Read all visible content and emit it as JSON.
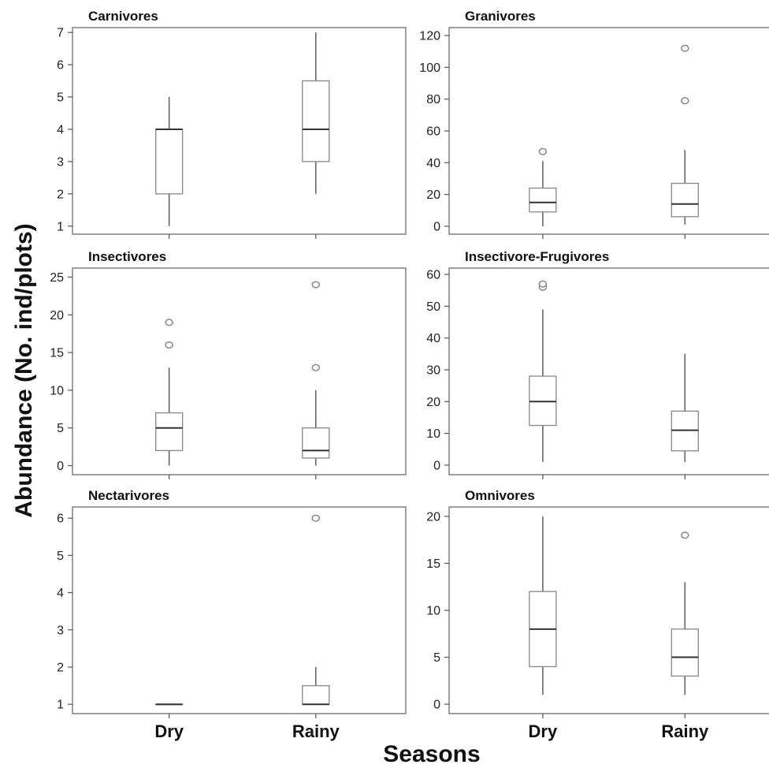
{
  "figure": {
    "ylabel": "Abundance (No. ind/plots)",
    "xlabel": "Seasons"
  },
  "chart_data": [
    {
      "type": "box",
      "title": "Carnivores",
      "categories": [
        "Dry",
        "Rainy"
      ],
      "ylim": [
        0.75,
        7.15
      ],
      "yticks": [
        1,
        2,
        3,
        4,
        5,
        6,
        7
      ],
      "boxes": [
        {
          "category": "Dry",
          "whisker_low": 1,
          "q1": 2,
          "median": 4,
          "q3": 4,
          "whisker_high": 5,
          "outliers": []
        },
        {
          "category": "Rainy",
          "whisker_low": 2,
          "q1": 3,
          "median": 4,
          "q3": 5.5,
          "whisker_high": 7,
          "outliers": []
        }
      ]
    },
    {
      "type": "box",
      "title": "Granivores",
      "categories": [
        "Dry",
        "Rainy"
      ],
      "ylim": [
        -5,
        125
      ],
      "yticks": [
        0,
        20,
        40,
        60,
        80,
        100,
        120
      ],
      "boxes": [
        {
          "category": "Dry",
          "whisker_low": 0,
          "q1": 9,
          "median": 15,
          "q3": 24,
          "whisker_high": 41,
          "outliers": [
            47
          ]
        },
        {
          "category": "Rainy",
          "whisker_low": 1,
          "q1": 6,
          "median": 14,
          "q3": 27,
          "whisker_high": 48,
          "outliers": [
            79,
            112
          ]
        }
      ]
    },
    {
      "type": "box",
      "title": "Insectivores",
      "categories": [
        "Dry",
        "Rainy"
      ],
      "ylim": [
        -1.2,
        26.2
      ],
      "yticks": [
        0,
        5,
        10,
        15,
        20,
        25
      ],
      "boxes": [
        {
          "category": "Dry",
          "whisker_low": 0,
          "q1": 2,
          "median": 5,
          "q3": 7,
          "whisker_high": 13,
          "outliers": [
            16,
            19
          ]
        },
        {
          "category": "Rainy",
          "whisker_low": 0,
          "q1": 1,
          "median": 2,
          "q3": 5,
          "whisker_high": 10,
          "outliers": [
            13,
            24
          ]
        }
      ]
    },
    {
      "type": "box",
      "title": "Insectivore-Frugivores",
      "categories": [
        "Dry",
        "Rainy"
      ],
      "ylim": [
        -3,
        62
      ],
      "yticks": [
        0,
        10,
        20,
        30,
        40,
        50,
        60
      ],
      "boxes": [
        {
          "category": "Dry",
          "whisker_low": 1,
          "q1": 12.5,
          "median": 20,
          "q3": 28,
          "whisker_high": 49,
          "outliers": [
            56,
            57
          ]
        },
        {
          "category": "Rainy",
          "whisker_low": 1,
          "q1": 4.5,
          "median": 11,
          "q3": 17,
          "whisker_high": 35,
          "outliers": []
        }
      ]
    },
    {
      "type": "box",
      "title": "Nectarivores",
      "categories": [
        "Dry",
        "Rainy"
      ],
      "ylim": [
        0.75,
        6.3
      ],
      "yticks": [
        1,
        2,
        3,
        4,
        5,
        6
      ],
      "boxes": [
        {
          "category": "Dry",
          "whisker_low": 1,
          "q1": 1,
          "median": 1,
          "q3": 1,
          "whisker_high": 1,
          "outliers": []
        },
        {
          "category": "Rainy",
          "whisker_low": 1,
          "q1": 1,
          "median": 1,
          "q3": 1.5,
          "whisker_high": 2,
          "outliers": [
            6
          ]
        }
      ]
    },
    {
      "type": "box",
      "title": "Omnivores",
      "categories": [
        "Dry",
        "Rainy"
      ],
      "ylim": [
        -1,
        21
      ],
      "yticks": [
        0,
        5,
        10,
        15,
        20
      ],
      "boxes": [
        {
          "category": "Dry",
          "whisker_low": 1,
          "q1": 4,
          "median": 8,
          "q3": 12,
          "whisker_high": 20,
          "outliers": []
        },
        {
          "category": "Rainy",
          "whisker_low": 1,
          "q1": 3,
          "median": 5,
          "q3": 8,
          "whisker_high": 13,
          "outliers": [
            18
          ]
        }
      ]
    }
  ]
}
